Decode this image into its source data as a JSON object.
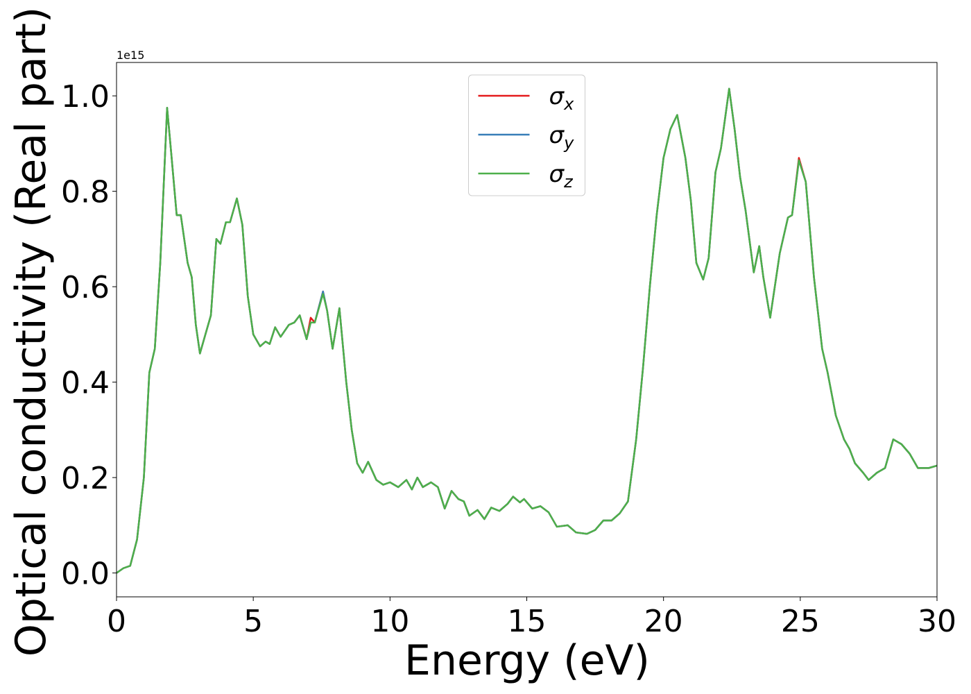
{
  "chart_data": {
    "type": "line",
    "x_label": "Energy (eV)",
    "y_label": "Optical conductivity (Real part)",
    "offset_text": "1e15",
    "xlim": [
      0,
      30
    ],
    "ylim": [
      -0.05,
      1.07
    ],
    "xticks": [
      0,
      5,
      10,
      15,
      20,
      25,
      30
    ],
    "yticks": [
      {
        "value": 0,
        "label": "0.0"
      },
      0.2,
      0.4,
      0.6,
      0.8,
      {
        "value": 1,
        "label": "1.0"
      }
    ],
    "grid": false,
    "legend": "upper center",
    "x": [
      0,
      0.25,
      0.5,
      0.75,
      1.0,
      1.2,
      1.4,
      1.6,
      1.85,
      2.0,
      2.2,
      2.35,
      2.6,
      2.75,
      2.9,
      3.05,
      3.3,
      3.45,
      3.65,
      3.8,
      4.0,
      4.15,
      4.4,
      4.6,
      4.8,
      5.0,
      5.25,
      5.45,
      5.6,
      5.8,
      6.0,
      6.3,
      6.5,
      6.7,
      6.95,
      7.1,
      7.25,
      7.55,
      7.7,
      7.9,
      8.15,
      8.4,
      8.6,
      8.8,
      9.0,
      9.2,
      9.5,
      9.75,
      10.0,
      10.3,
      10.6,
      10.8,
      11.0,
      11.2,
      11.5,
      11.75,
      12.0,
      12.25,
      12.5,
      12.7,
      12.9,
      13.2,
      13.45,
      13.7,
      14.0,
      14.3,
      14.5,
      14.75,
      14.9,
      15.2,
      15.5,
      15.8,
      16.1,
      16.5,
      16.8,
      17.2,
      17.5,
      17.8,
      18.1,
      18.4,
      18.7,
      19.0,
      19.25,
      19.5,
      19.75,
      20.0,
      20.25,
      20.5,
      20.8,
      21.0,
      21.2,
      21.45,
      21.65,
      21.9,
      22.1,
      22.4,
      22.6,
      22.8,
      23.0,
      23.3,
      23.5,
      23.65,
      23.9,
      24.25,
      24.55,
      24.7,
      24.95,
      25.2,
      25.5,
      25.8,
      26.0,
      26.3,
      26.6,
      26.8,
      27.0,
      27.3,
      27.5,
      27.8,
      28.1,
      28.4,
      28.7,
      29.0,
      29.3,
      29.7,
      30.0
    ],
    "series": [
      {
        "name": "σx",
        "color": "#e41a1c",
        "values": [
          0,
          0.01,
          0.015,
          0.07,
          0.2,
          0.42,
          0.47,
          0.65,
          0.975,
          0.88,
          0.75,
          0.75,
          0.65,
          0.62,
          0.52,
          0.46,
          0.51,
          0.54,
          0.7,
          0.69,
          0.735,
          0.735,
          0.785,
          0.73,
          0.58,
          0.5,
          0.475,
          0.485,
          0.48,
          0.515,
          0.495,
          0.52,
          0.525,
          0.54,
          0.49,
          0.535,
          0.525,
          0.59,
          0.55,
          0.47,
          0.555,
          0.4,
          0.3,
          0.23,
          0.21,
          0.233,
          0.195,
          0.185,
          0.19,
          0.18,
          0.195,
          0.175,
          0.2,
          0.18,
          0.19,
          0.18,
          0.135,
          0.172,
          0.155,
          0.15,
          0.12,
          0.132,
          0.113,
          0.137,
          0.13,
          0.145,
          0.16,
          0.148,
          0.155,
          0.135,
          0.14,
          0.127,
          0.097,
          0.1,
          0.085,
          0.082,
          0.09,
          0.11,
          0.11,
          0.125,
          0.15,
          0.28,
          0.43,
          0.6,
          0.75,
          0.87,
          0.93,
          0.96,
          0.87,
          0.78,
          0.65,
          0.615,
          0.66,
          0.84,
          0.89,
          1.015,
          0.93,
          0.83,
          0.76,
          0.63,
          0.685,
          0.62,
          0.535,
          0.67,
          0.745,
          0.75,
          0.87,
          0.82,
          0.62,
          0.47,
          0.42,
          0.33,
          0.28,
          0.26,
          0.23,
          0.21,
          0.195,
          0.21,
          0.22,
          0.28,
          0.27,
          0.25,
          0.22,
          0.22,
          0.225
        ]
      },
      {
        "name": "σy",
        "color": "#377eb8",
        "values": [
          0,
          0.01,
          0.015,
          0.07,
          0.2,
          0.42,
          0.47,
          0.65,
          0.975,
          0.88,
          0.75,
          0.75,
          0.65,
          0.62,
          0.52,
          0.46,
          0.51,
          0.54,
          0.7,
          0.69,
          0.735,
          0.735,
          0.785,
          0.73,
          0.58,
          0.5,
          0.475,
          0.485,
          0.48,
          0.515,
          0.495,
          0.52,
          0.525,
          0.54,
          0.49,
          0.525,
          0.525,
          0.59,
          0.55,
          0.47,
          0.555,
          0.4,
          0.3,
          0.23,
          0.21,
          0.233,
          0.195,
          0.185,
          0.19,
          0.18,
          0.195,
          0.175,
          0.2,
          0.18,
          0.19,
          0.18,
          0.135,
          0.172,
          0.155,
          0.15,
          0.12,
          0.132,
          0.113,
          0.137,
          0.13,
          0.145,
          0.16,
          0.148,
          0.155,
          0.135,
          0.14,
          0.127,
          0.097,
          0.1,
          0.085,
          0.082,
          0.09,
          0.11,
          0.11,
          0.125,
          0.15,
          0.28,
          0.43,
          0.6,
          0.75,
          0.87,
          0.93,
          0.96,
          0.87,
          0.78,
          0.65,
          0.615,
          0.66,
          0.84,
          0.89,
          1.015,
          0.93,
          0.83,
          0.76,
          0.63,
          0.685,
          0.62,
          0.535,
          0.67,
          0.745,
          0.75,
          0.865,
          0.82,
          0.62,
          0.47,
          0.42,
          0.33,
          0.28,
          0.26,
          0.23,
          0.21,
          0.195,
          0.21,
          0.22,
          0.28,
          0.27,
          0.25,
          0.22,
          0.22,
          0.225
        ]
      },
      {
        "name": "σz",
        "color": "#4daf4a",
        "values": [
          0,
          0.01,
          0.015,
          0.07,
          0.2,
          0.42,
          0.47,
          0.65,
          0.975,
          0.88,
          0.75,
          0.75,
          0.65,
          0.62,
          0.52,
          0.46,
          0.51,
          0.54,
          0.7,
          0.69,
          0.735,
          0.735,
          0.785,
          0.73,
          0.58,
          0.5,
          0.475,
          0.485,
          0.48,
          0.515,
          0.495,
          0.52,
          0.525,
          0.54,
          0.49,
          0.525,
          0.525,
          0.585,
          0.55,
          0.47,
          0.555,
          0.4,
          0.3,
          0.23,
          0.21,
          0.233,
          0.195,
          0.185,
          0.19,
          0.18,
          0.195,
          0.175,
          0.2,
          0.18,
          0.19,
          0.18,
          0.135,
          0.172,
          0.155,
          0.15,
          0.12,
          0.132,
          0.113,
          0.137,
          0.13,
          0.145,
          0.16,
          0.148,
          0.155,
          0.135,
          0.14,
          0.127,
          0.097,
          0.1,
          0.085,
          0.082,
          0.09,
          0.11,
          0.11,
          0.125,
          0.15,
          0.28,
          0.43,
          0.6,
          0.75,
          0.87,
          0.93,
          0.96,
          0.87,
          0.78,
          0.65,
          0.615,
          0.66,
          0.84,
          0.89,
          1.015,
          0.93,
          0.83,
          0.76,
          0.63,
          0.685,
          0.62,
          0.535,
          0.67,
          0.745,
          0.75,
          0.865,
          0.82,
          0.62,
          0.47,
          0.42,
          0.33,
          0.28,
          0.26,
          0.23,
          0.21,
          0.195,
          0.21,
          0.22,
          0.28,
          0.27,
          0.25,
          0.22,
          0.22,
          0.225
        ]
      }
    ]
  }
}
